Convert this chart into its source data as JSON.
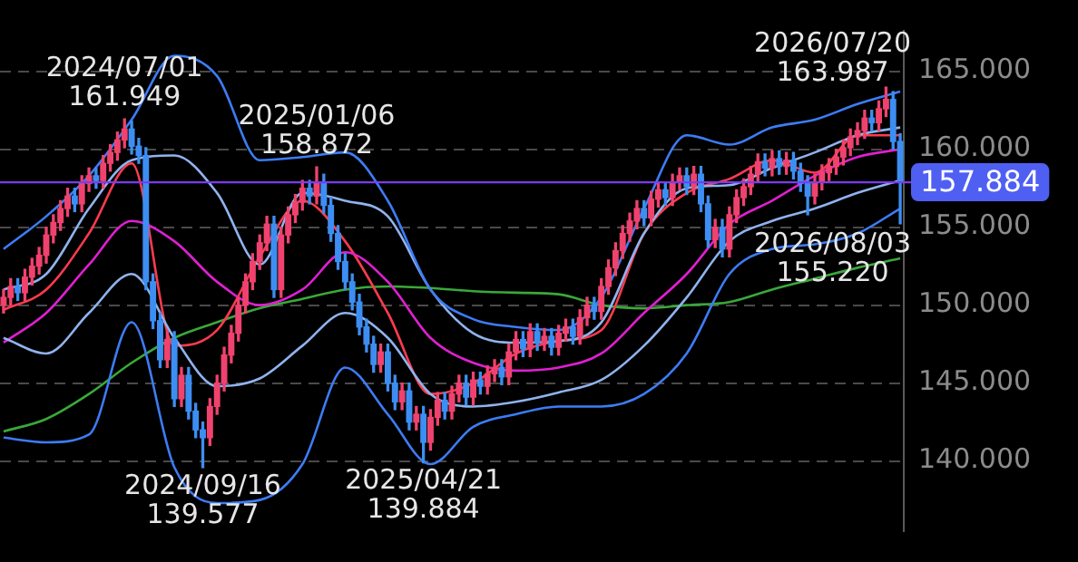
{
  "chart_data": {
    "type": "candlestick",
    "categories": [
      null,
      null,
      null,
      null,
      null,
      null,
      null,
      null,
      null,
      null,
      null,
      null,
      null,
      null,
      null,
      null,
      null,
      null,
      null,
      null,
      null,
      null,
      null,
      null,
      null,
      null,
      null,
      null,
      null,
      null,
      null,
      null,
      null,
      null,
      null,
      null,
      null,
      null,
      null,
      null,
      null,
      null,
      null,
      null,
      null,
      null,
      null,
      null,
      null,
      null,
      null,
      null,
      null,
      null,
      null,
      null,
      null,
      null,
      null,
      null,
      null,
      null,
      null,
      null,
      null,
      null,
      null,
      null,
      null,
      null,
      null,
      null,
      null,
      null,
      null,
      null,
      null,
      null,
      null,
      null,
      null,
      null,
      null,
      null,
      null,
      null,
      null,
      null,
      null,
      null,
      null,
      null,
      null,
      null,
      null,
      null,
      null,
      null,
      null,
      null,
      null,
      null,
      null,
      null,
      null,
      null,
      null,
      null,
      null,
      null,
      null,
      null,
      null,
      null,
      null,
      null,
      null,
      null,
      null,
      null,
      null,
      null,
      null,
      null,
      null,
      null,
      null
    ],
    "ohlc": [
      [
        150.0,
        151.0,
        149.5,
        150.5
      ],
      [
        150.5,
        151.7,
        150.0,
        151.2
      ],
      [
        151.2,
        151.7,
        150.3,
        150.8
      ],
      [
        150.8,
        152.3,
        150.3,
        151.8
      ],
      [
        151.8,
        153.0,
        151.3,
        152.5
      ],
      [
        152.5,
        153.7,
        152.0,
        153.2
      ],
      [
        153.2,
        155.0,
        152.7,
        154.5
      ],
      [
        154.5,
        155.8,
        154.0,
        155.3
      ],
      [
        155.3,
        156.7,
        154.8,
        156.2
      ],
      [
        156.2,
        157.5,
        155.7,
        157.0
      ],
      [
        157.0,
        157.5,
        156.0,
        156.5
      ],
      [
        156.5,
        158.3,
        156.0,
        157.8
      ],
      [
        157.8,
        158.8,
        157.3,
        158.3
      ],
      [
        158.3,
        158.8,
        157.5,
        158.0
      ],
      [
        158.0,
        159.6,
        157.5,
        159.1
      ],
      [
        159.1,
        160.3,
        158.6,
        159.8
      ],
      [
        159.8,
        161.1,
        159.3,
        160.6
      ],
      [
        160.6,
        161.949,
        160.1,
        161.3
      ],
      [
        161.3,
        161.8,
        159.7,
        160.2
      ],
      [
        160.2,
        160.7,
        159.1,
        159.6
      ],
      [
        159.6,
        160.1,
        151.0,
        151.5
      ],
      [
        151.5,
        152.0,
        148.5,
        149.0
      ],
      [
        149.0,
        149.5,
        146.0,
        146.5
      ],
      [
        146.5,
        148.3,
        146.0,
        147.8
      ],
      [
        147.8,
        148.3,
        143.5,
        144.0
      ],
      [
        144.0,
        146.0,
        143.5,
        145.5
      ],
      [
        145.5,
        146.0,
        142.7,
        143.2
      ],
      [
        143.2,
        143.7,
        141.5,
        142.0
      ],
      [
        142.0,
        142.5,
        139.577,
        141.5
      ],
      [
        141.5,
        144.0,
        141.0,
        143.5
      ],
      [
        143.5,
        145.5,
        143.0,
        145.0
      ],
      [
        145.0,
        147.3,
        144.5,
        146.8
      ],
      [
        146.8,
        148.7,
        146.3,
        148.2
      ],
      [
        148.2,
        150.5,
        147.7,
        150.0
      ],
      [
        150.0,
        152.0,
        149.5,
        151.5
      ],
      [
        151.5,
        153.3,
        151.0,
        152.8
      ],
      [
        152.8,
        154.5,
        152.3,
        154.0
      ],
      [
        154.0,
        155.7,
        153.5,
        155.2
      ],
      [
        155.2,
        155.7,
        150.5,
        151.0
      ],
      [
        151.0,
        155.0,
        150.5,
        154.5
      ],
      [
        154.5,
        156.3,
        154.0,
        155.8
      ],
      [
        155.8,
        157.1,
        155.3,
        156.6
      ],
      [
        156.6,
        158.0,
        156.1,
        157.5
      ],
      [
        157.5,
        158.0,
        156.5,
        157.0
      ],
      [
        157.0,
        158.872,
        156.5,
        157.9
      ],
      [
        157.9,
        158.4,
        155.9,
        156.4
      ],
      [
        156.4,
        156.9,
        154.1,
        154.6
      ],
      [
        154.6,
        155.1,
        152.3,
        152.8
      ],
      [
        152.8,
        153.3,
        151.0,
        151.5
      ],
      [
        151.5,
        152.0,
        149.7,
        150.2
      ],
      [
        150.2,
        150.7,
        148.1,
        148.6
      ],
      [
        148.6,
        149.1,
        147.0,
        147.5
      ],
      [
        147.5,
        148.0,
        145.7,
        146.2
      ],
      [
        146.2,
        147.5,
        145.7,
        147.0
      ],
      [
        147.0,
        147.5,
        144.5,
        145.0
      ],
      [
        145.0,
        145.5,
        143.3,
        143.8
      ],
      [
        143.8,
        145.0,
        143.3,
        144.5
      ],
      [
        144.5,
        145.0,
        142.0,
        142.5
      ],
      [
        142.5,
        143.5,
        142.0,
        143.0
      ],
      [
        143.0,
        143.5,
        139.884,
        141.2
      ],
      [
        141.2,
        143.3,
        140.7,
        142.8
      ],
      [
        142.8,
        144.4,
        142.3,
        143.9
      ],
      [
        143.9,
        144.4,
        142.7,
        143.2
      ],
      [
        143.2,
        144.8,
        142.7,
        144.3
      ],
      [
        144.3,
        145.5,
        143.8,
        145.0
      ],
      [
        145.0,
        145.5,
        143.6,
        144.1
      ],
      [
        144.1,
        145.7,
        143.6,
        145.2
      ],
      [
        145.2,
        145.7,
        144.3,
        144.8
      ],
      [
        144.8,
        146.1,
        144.3,
        145.6
      ],
      [
        145.6,
        146.5,
        145.1,
        146.0
      ],
      [
        146.0,
        146.5,
        144.9,
        145.4
      ],
      [
        145.4,
        147.5,
        144.9,
        147.0
      ],
      [
        147.0,
        148.3,
        146.5,
        147.8
      ],
      [
        147.8,
        148.3,
        146.7,
        147.2
      ],
      [
        147.2,
        148.8,
        146.7,
        148.3
      ],
      [
        148.3,
        148.8,
        147.1,
        147.6
      ],
      [
        147.6,
        148.5,
        147.1,
        148.0
      ],
      [
        148.0,
        148.5,
        146.8,
        147.3
      ],
      [
        147.3,
        148.7,
        146.8,
        148.2
      ],
      [
        148.2,
        149.1,
        147.7,
        148.6
      ],
      [
        148.6,
        149.1,
        147.5,
        148.0
      ],
      [
        148.0,
        149.7,
        147.5,
        149.2
      ],
      [
        149.2,
        150.5,
        148.7,
        150.0
      ],
      [
        150.0,
        150.5,
        149.1,
        149.6
      ],
      [
        149.6,
        151.7,
        149.1,
        151.2
      ],
      [
        151.2,
        152.9,
        150.7,
        152.4
      ],
      [
        152.4,
        154.0,
        151.9,
        153.5
      ],
      [
        153.5,
        155.1,
        153.0,
        154.6
      ],
      [
        154.6,
        155.9,
        154.1,
        155.4
      ],
      [
        155.4,
        156.7,
        154.9,
        156.2
      ],
      [
        156.2,
        156.7,
        155.1,
        155.6
      ],
      [
        155.6,
        157.3,
        155.1,
        156.8
      ],
      [
        156.8,
        157.9,
        156.3,
        157.4
      ],
      [
        157.4,
        157.9,
        156.4,
        156.9
      ],
      [
        156.9,
        158.4,
        156.4,
        157.9
      ],
      [
        157.9,
        158.8,
        157.4,
        158.3
      ],
      [
        158.3,
        158.8,
        157.1,
        157.6
      ],
      [
        157.6,
        158.9,
        157.1,
        158.4
      ],
      [
        158.4,
        158.9,
        156.0,
        156.5
      ],
      [
        156.5,
        157.0,
        153.7,
        154.2
      ],
      [
        154.2,
        155.5,
        153.7,
        155.0
      ],
      [
        155.0,
        155.5,
        153.1,
        153.6
      ],
      [
        153.6,
        156.3,
        153.1,
        155.8
      ],
      [
        155.8,
        157.4,
        155.3,
        156.9
      ],
      [
        156.9,
        158.1,
        156.4,
        157.6
      ],
      [
        157.6,
        158.9,
        157.1,
        158.4
      ],
      [
        158.4,
        159.7,
        157.9,
        159.2
      ],
      [
        159.2,
        159.7,
        158.3,
        158.8
      ],
      [
        158.8,
        159.9,
        158.3,
        159.4
      ],
      [
        159.4,
        159.9,
        158.4,
        158.9
      ],
      [
        158.9,
        159.8,
        158.4,
        159.3
      ],
      [
        159.3,
        159.8,
        158.1,
        158.6
      ],
      [
        158.6,
        159.1,
        157.3,
        157.8
      ],
      [
        157.8,
        158.3,
        155.8,
        157.0
      ],
      [
        157.0,
        158.4,
        156.5,
        157.9
      ],
      [
        157.9,
        159.0,
        157.4,
        158.5
      ],
      [
        158.5,
        159.4,
        158.0,
        158.9
      ],
      [
        158.9,
        160.0,
        158.4,
        159.5
      ],
      [
        159.5,
        160.6,
        159.0,
        160.1
      ],
      [
        160.1,
        161.3,
        159.6,
        160.8
      ],
      [
        160.8,
        161.7,
        160.3,
        161.2
      ],
      [
        161.2,
        162.5,
        160.7,
        162.0
      ],
      [
        162.0,
        162.5,
        161.2,
        161.7
      ],
      [
        161.7,
        163.1,
        161.2,
        162.6
      ],
      [
        162.6,
        163.987,
        162.1,
        163.2
      ],
      [
        163.2,
        163.7,
        160.0,
        160.5
      ],
      [
        160.5,
        161.0,
        155.22,
        157.884
      ]
    ],
    "series": [
      {
        "type": "line",
        "color": "#3d7cf5",
        "values": [
          153.6,
          null,
          null,
          null,
          null,
          null,
          155.7,
          null,
          null,
          null,
          null,
          null,
          158.3,
          null,
          null,
          null,
          null,
          null,
          161.9,
          null,
          null,
          null,
          null,
          null,
          166.0,
          null,
          null,
          null,
          null,
          null,
          164.7,
          null,
          null,
          null,
          null,
          null,
          159.3,
          null,
          null,
          null,
          null,
          null,
          159.5,
          null,
          null,
          null,
          null,
          null,
          159.8,
          null,
          null,
          null,
          null,
          null,
          156.7,
          null,
          null,
          null,
          null,
          null,
          151.0,
          null,
          null,
          null,
          null,
          null,
          149.1,
          null,
          null,
          null,
          null,
          null,
          148.6,
          null,
          null,
          null,
          null,
          null,
          148.4,
          null,
          null,
          null,
          null,
          null,
          150.5,
          null,
          null,
          null,
          null,
          null,
          156.2,
          null,
          null,
          null,
          null,
          null,
          160.9,
          null,
          null,
          null,
          null,
          null,
          160.3,
          null,
          null,
          null,
          null,
          null,
          161.4,
          null,
          null,
          null,
          null,
          null,
          161.9,
          null,
          null,
          null,
          null,
          null,
          162.9,
          null,
          null,
          null,
          null,
          null,
          163.7
        ]
      },
      {
        "type": "line",
        "color": "#3d7cf5",
        "values": [
          141.5,
          null,
          null,
          null,
          null,
          null,
          141.2,
          null,
          null,
          null,
          null,
          null,
          141.7,
          null,
          null,
          null,
          null,
          null,
          148.9,
          null,
          null,
          null,
          null,
          null,
          139.6,
          null,
          null,
          null,
          null,
          null,
          137.3,
          null,
          null,
          null,
          null,
          null,
          137.5,
          null,
          null,
          null,
          null,
          null,
          139.8,
          null,
          null,
          null,
          null,
          null,
          146.0,
          null,
          null,
          null,
          null,
          null,
          143.0,
          null,
          null,
          null,
          null,
          null,
          139.8,
          null,
          null,
          null,
          null,
          null,
          142.2,
          null,
          null,
          null,
          null,
          null,
          143.0,
          null,
          null,
          null,
          null,
          null,
          143.5,
          null,
          null,
          null,
          null,
          null,
          143.5,
          null,
          null,
          null,
          null,
          null,
          144.3,
          null,
          null,
          null,
          null,
          null,
          146.9,
          null,
          null,
          null,
          null,
          null,
          152.0,
          null,
          null,
          null,
          null,
          null,
          153.6,
          null,
          null,
          null,
          null,
          null,
          153.9,
          null,
          null,
          null,
          null,
          null,
          154.6,
          null,
          null,
          null,
          null,
          null,
          156.2
        ]
      },
      {
        "type": "line",
        "color": "#8fb3ee",
        "values": [
          151.0,
          null,
          null,
          null,
          null,
          null,
          152.0,
          null,
          null,
          null,
          null,
          null,
          156.2,
          null,
          null,
          null,
          null,
          null,
          159.3,
          null,
          null,
          null,
          null,
          null,
          159.6,
          null,
          null,
          null,
          null,
          null,
          157.2,
          null,
          null,
          null,
          null,
          null,
          152.6,
          null,
          null,
          null,
          null,
          null,
          157.2,
          null,
          null,
          null,
          null,
          null,
          156.7,
          null,
          null,
          null,
          null,
          null,
          155.7,
          null,
          null,
          null,
          null,
          null,
          151.0,
          null,
          null,
          null,
          null,
          null,
          148.2,
          null,
          null,
          null,
          null,
          null,
          147.6,
          null,
          null,
          null,
          null,
          null,
          147.7,
          null,
          null,
          null,
          null,
          null,
          148.9,
          null,
          null,
          null,
          null,
          null,
          154.6,
          null,
          null,
          null,
          null,
          null,
          157.5,
          null,
          null,
          null,
          null,
          null,
          157.7,
          null,
          null,
          null,
          null,
          null,
          158.8,
          null,
          null,
          null,
          null,
          null,
          159.8,
          null,
          null,
          null,
          null,
          null,
          160.9,
          null,
          null,
          null,
          null,
          null,
          161.4
        ]
      },
      {
        "type": "line",
        "color": "#8fb3ee",
        "values": [
          147.9,
          null,
          null,
          null,
          null,
          null,
          146.9,
          null,
          null,
          null,
          null,
          null,
          149.5,
          null,
          null,
          null,
          null,
          null,
          152.0,
          null,
          null,
          null,
          null,
          null,
          147.9,
          null,
          null,
          null,
          null,
          null,
          144.8,
          null,
          null,
          null,
          null,
          null,
          145.3,
          null,
          null,
          null,
          null,
          null,
          147.4,
          null,
          null,
          null,
          null,
          null,
          149.5,
          null,
          null,
          null,
          null,
          null,
          147.9,
          null,
          null,
          null,
          null,
          null,
          144.3,
          null,
          null,
          null,
          null,
          null,
          143.5,
          null,
          null,
          null,
          null,
          null,
          143.8,
          null,
          null,
          null,
          null,
          null,
          144.4,
          null,
          null,
          null,
          null,
          null,
          145.2,
          null,
          null,
          null,
          null,
          null,
          147.4,
          null,
          null,
          null,
          null,
          null,
          150.5,
          null,
          null,
          null,
          null,
          null,
          154.1,
          null,
          null,
          null,
          null,
          null,
          155.4,
          null,
          null,
          null,
          null,
          null,
          156.2,
          null,
          null,
          null,
          null,
          null,
          157.2,
          null,
          null,
          null,
          null,
          null,
          158.0
        ]
      },
      {
        "type": "line",
        "color": "#e01fd2",
        "values": [
          147.6,
          null,
          null,
          null,
          null,
          null,
          149.5,
          null,
          null,
          null,
          null,
          null,
          152.6,
          null,
          null,
          null,
          null,
          null,
          155.4,
          null,
          null,
          null,
          null,
          null,
          154.1,
          null,
          null,
          null,
          null,
          null,
          151.5,
          null,
          null,
          null,
          null,
          null,
          150.0,
          null,
          null,
          null,
          null,
          null,
          151.0,
          null,
          null,
          null,
          null,
          null,
          153.4,
          null,
          null,
          null,
          null,
          null,
          151.5,
          null,
          null,
          null,
          null,
          null,
          147.9,
          null,
          null,
          null,
          null,
          null,
          146.3,
          null,
          null,
          null,
          null,
          null,
          145.8,
          null,
          null,
          null,
          null,
          null,
          146.0,
          null,
          null,
          null,
          null,
          null,
          146.9,
          null,
          null,
          null,
          null,
          null,
          149.5,
          null,
          null,
          null,
          null,
          null,
          152.0,
          null,
          null,
          null,
          null,
          null,
          155.2,
          null,
          null,
          null,
          null,
          null,
          156.7,
          null,
          null,
          null,
          null,
          null,
          158.3,
          null,
          null,
          null,
          null,
          null,
          159.5,
          null,
          null,
          null,
          null,
          null,
          160.0
        ]
      },
      {
        "type": "line",
        "color": "#ff3b4e",
        "values": [
          149.7,
          null,
          null,
          null,
          null,
          null,
          151.0,
          null,
          null,
          null,
          null,
          null,
          154.6,
          null,
          null,
          null,
          null,
          null,
          159.1,
          null,
          null,
          null,
          null,
          null,
          147.4,
          null,
          null,
          null,
          null,
          null,
          148.4,
          null,
          null,
          null,
          null,
          null,
          153.1,
          null,
          null,
          null,
          null,
          null,
          156.7,
          null,
          null,
          null,
          null,
          null,
          154.1,
          null,
          null,
          null,
          null,
          null,
          149.5,
          null,
          null,
          null,
          null,
          null,
          144.3,
          null,
          null,
          null,
          null,
          null,
          145.0,
          null,
          null,
          null,
          null,
          null,
          146.9,
          null,
          null,
          null,
          null,
          null,
          147.7,
          null,
          null,
          null,
          null,
          null,
          148.4,
          null,
          null,
          null,
          null,
          null,
          154.6,
          null,
          null,
          null,
          null,
          null,
          157.2,
          null,
          null,
          null,
          null,
          null,
          158.1,
          null,
          null,
          null,
          null,
          null,
          159.3,
          null,
          null,
          null,
          null,
          null,
          158.5,
          null,
          null,
          null,
          null,
          null,
          160.9,
          null,
          null,
          null,
          null,
          null,
          160.9
        ]
      },
      {
        "type": "line",
        "color": "#3aa83a",
        "values": [
          141.9,
          null,
          null,
          null,
          null,
          null,
          142.7,
          null,
          null,
          null,
          null,
          null,
          144.3,
          null,
          null,
          null,
          null,
          null,
          146.3,
          null,
          null,
          null,
          null,
          null,
          147.9,
          null,
          null,
          null,
          null,
          null,
          148.9,
          null,
          null,
          null,
          null,
          null,
          149.8,
          null,
          null,
          null,
          null,
          null,
          150.4,
          null,
          null,
          null,
          null,
          null,
          151.0,
          null,
          null,
          null,
          null,
          null,
          151.2,
          null,
          null,
          null,
          null,
          null,
          151.1,
          null,
          null,
          null,
          null,
          null,
          150.9,
          null,
          null,
          null,
          null,
          null,
          150.8,
          null,
          null,
          null,
          null,
          null,
          150.7,
          null,
          null,
          null,
          null,
          null,
          150.0,
          null,
          null,
          null,
          null,
          null,
          149.8,
          null,
          null,
          null,
          null,
          null,
          150.0,
          null,
          null,
          null,
          null,
          null,
          150.2,
          null,
          null,
          null,
          null,
          null,
          151.0,
          null,
          null,
          null,
          null,
          null,
          151.7,
          null,
          null,
          null,
          null,
          null,
          152.4,
          null,
          null,
          null,
          null,
          null,
          153.0
        ]
      }
    ],
    "ylim": [
      135.5,
      167.6
    ],
    "yticks": [
      {
        "value": 140,
        "label": "140.000"
      },
      {
        "value": 145,
        "label": "145.000"
      },
      {
        "value": 150,
        "label": "150.000"
      },
      {
        "value": 155,
        "label": "155.000"
      },
      {
        "value": 160,
        "label": "160.000"
      },
      {
        "value": 165,
        "label": "165.000"
      }
    ],
    "grid": "y",
    "legend": false,
    "tick_labels": "y",
    "ref_lines": [
      {
        "axis": "y",
        "value": 157.884,
        "label": "157.884",
        "color": "#7b3cf0"
      }
    ],
    "annotations": [
      {
        "text": "2024/07/01\n161.949",
        "y": 161.949
      },
      {
        "text": "2024/09/16\n139.577",
        "y": 139.577
      },
      {
        "text": "2025/01/06\n158.872",
        "y": 158.872
      },
      {
        "text": "2025/04/21\n139.884",
        "y": 139.884
      },
      "2026/07/20\n163.987",
      "2026/08/03\n155.220"
    ]
  }
}
